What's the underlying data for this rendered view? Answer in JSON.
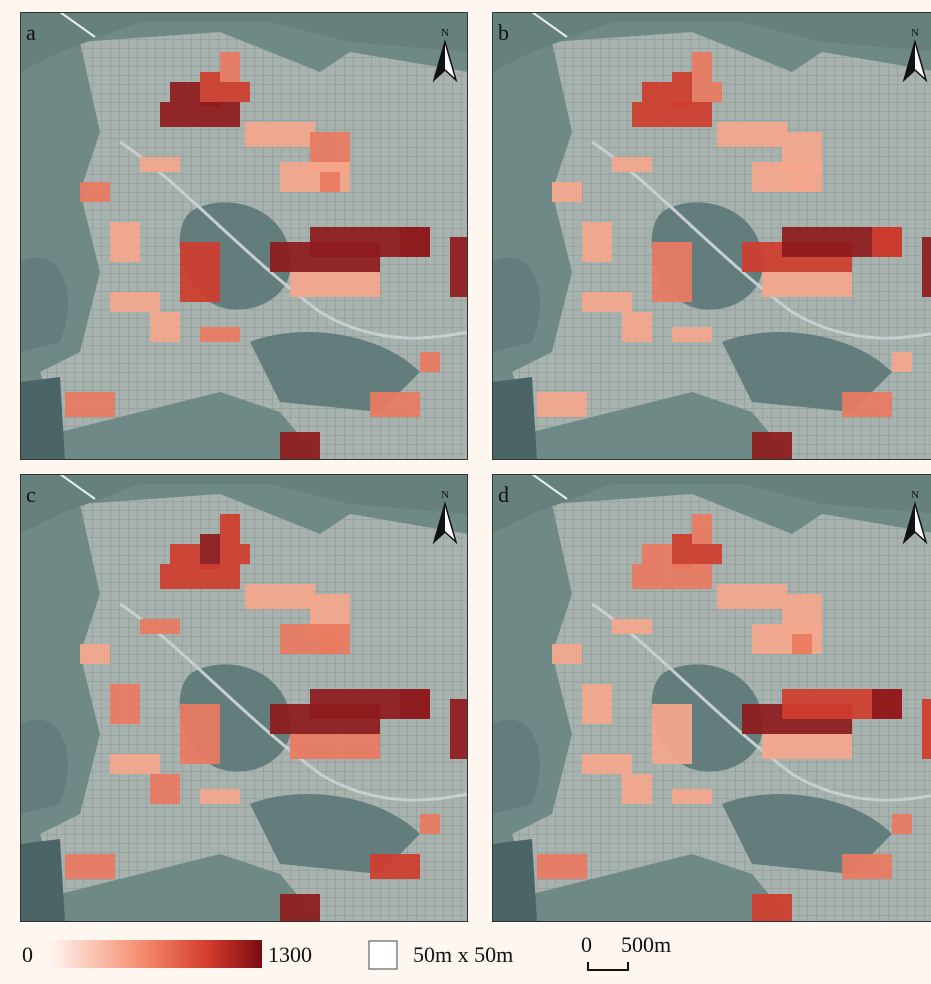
{
  "panels": [
    {
      "label": "a",
      "north": "N"
    },
    {
      "label": "b",
      "north": "N"
    },
    {
      "label": "c",
      "north": "N"
    },
    {
      "label": "d",
      "north": "N"
    }
  ],
  "legend": {
    "min": 0,
    "max": 1300,
    "cell": "50m x 50m",
    "scale_start": 0,
    "scale_end": "500m"
  }
}
